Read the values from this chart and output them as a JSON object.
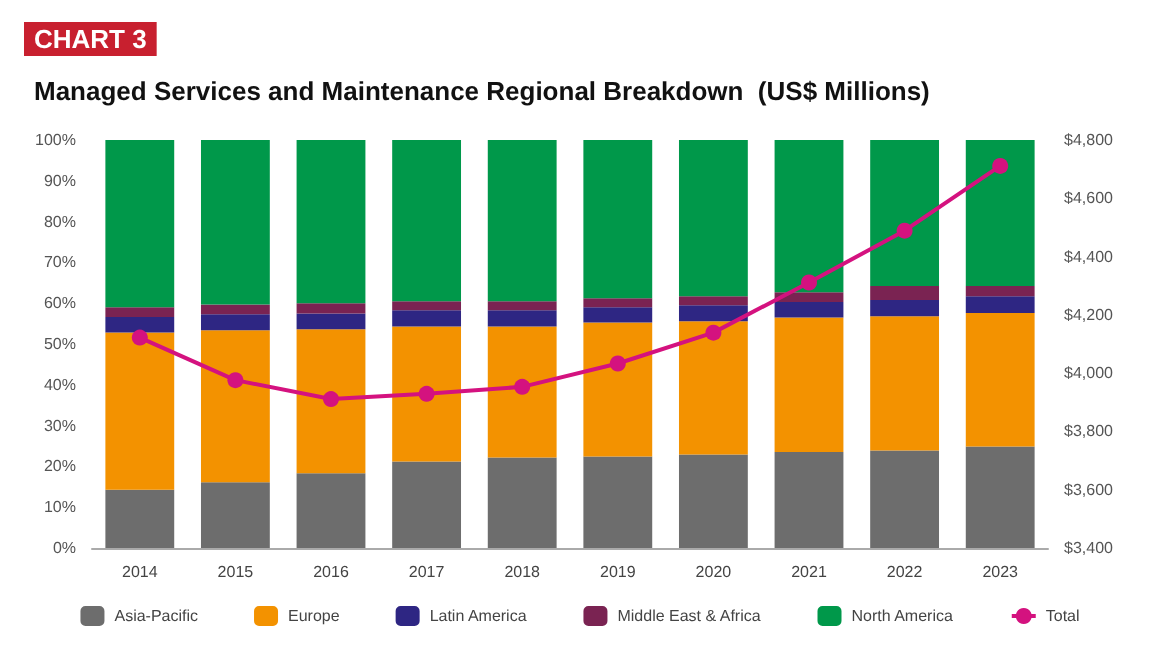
{
  "chart_data": {
    "type": "bar",
    "stacked": true,
    "title": "Managed Services and Maintenance Regional Breakdown  (US$ Millions)",
    "annotations": [
      "CHART 3"
    ],
    "categories": [
      "2014",
      "2015",
      "2016",
      "2017",
      "2018",
      "2019",
      "2020",
      "2021",
      "2022",
      "2023"
    ],
    "series": [
      {
        "name": "Asia-Pacific",
        "color": "#6d6d6d",
        "values": [
          14.3,
          16.1,
          18.3,
          21.2,
          22.2,
          22.4,
          22.9,
          23.5,
          23.9,
          24.9
        ]
      },
      {
        "name": "Europe",
        "color": "#f39200",
        "values": [
          38.5,
          37.3,
          35.3,
          33.1,
          32.1,
          32.9,
          32.7,
          33,
          32.9,
          32.7
        ]
      },
      {
        "name": "Latin America",
        "color": "#2e2683",
        "values": [
          3.8,
          3.9,
          3.9,
          4,
          4,
          3.7,
          3.9,
          3.8,
          4,
          4.1
        ]
      },
      {
        "name": "Middle East & Africa",
        "color": "#7a2352",
        "values": [
          2.4,
          2.4,
          2.5,
          2.2,
          2.2,
          2.2,
          2.2,
          2.4,
          3.4,
          2.5
        ]
      },
      {
        "name": "North America",
        "color": "#00984a",
        "values": [
          41,
          40.3,
          40,
          39.5,
          39.5,
          38.8,
          38.3,
          37.3,
          35.8,
          35.8
        ]
      },
      {
        "name": "Total",
        "type": "line",
        "axis": "y2",
        "color": "#d4127f",
        "marker": "circle",
        "values": [
          4122,
          3976,
          3911,
          3929,
          3953,
          4033,
          4139,
          4311,
          4489,
          4711
        ]
      }
    ],
    "ylim": [
      0,
      100
    ],
    "yticks": [
      {
        "value": 0,
        "label": "0%"
      },
      {
        "value": 10,
        "label": "10%"
      },
      {
        "value": 20,
        "label": "20%"
      },
      {
        "value": 30,
        "label": "30%"
      },
      {
        "value": 40,
        "label": "40%"
      },
      {
        "value": 50,
        "label": "50%"
      },
      {
        "value": 60,
        "label": "60%"
      },
      {
        "value": 70,
        "label": "70%"
      },
      {
        "value": 80,
        "label": "80%"
      },
      {
        "value": 90,
        "label": "90%"
      },
      {
        "value": 100,
        "label": "100%"
      }
    ],
    "y2lim": [
      3400,
      4800
    ],
    "y2ticks": [
      {
        "value": 3400,
        "label": "$3,400"
      },
      {
        "value": 3600,
        "label": "$3,600"
      },
      {
        "value": 3800,
        "label": "$3,800"
      },
      {
        "value": 4000,
        "label": "$4,000"
      },
      {
        "value": 4200,
        "label": "$4,200"
      },
      {
        "value": 4400,
        "label": "$4,400"
      },
      {
        "value": 4600,
        "label": "$4,600"
      },
      {
        "value": 4800,
        "label": "$4,800"
      }
    ],
    "grid": false,
    "legend": "bottom"
  }
}
